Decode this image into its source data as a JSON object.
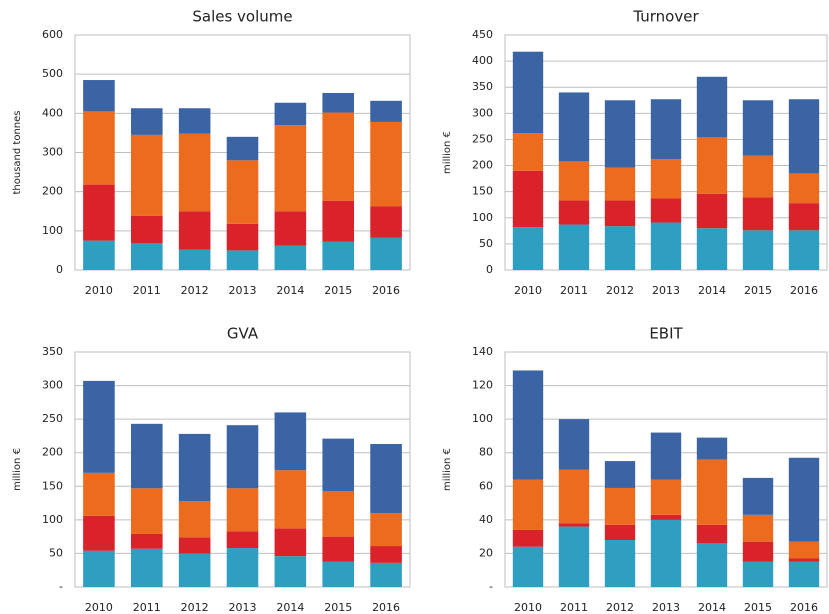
{
  "chart_data": [
    {
      "type": "bar",
      "stacked": true,
      "title": "Sales volume",
      "y_label": "thousand tonnes",
      "categories": [
        "2010",
        "2011",
        "2012",
        "2013",
        "2014",
        "2015",
        "2016"
      ],
      "series": [
        {
          "color": "#2e9fc0",
          "values": [
            75,
            68,
            52,
            50,
            62,
            72,
            83
          ]
        },
        {
          "color": "#d9222a",
          "values": [
            143,
            70,
            98,
            68,
            88,
            105,
            80
          ]
        },
        {
          "color": "#ec6b1e",
          "values": [
            187,
            207,
            198,
            162,
            220,
            225,
            215
          ]
        },
        {
          "color": "#3a64a3",
          "values": [
            80,
            68,
            65,
            60,
            57,
            50,
            54
          ]
        }
      ],
      "ylim": [
        0,
        600
      ],
      "yticks": [
        0,
        100,
        200,
        300,
        400,
        500,
        600
      ],
      "grid": true
    },
    {
      "type": "bar",
      "stacked": true,
      "title": "Turnover",
      "y_label": "million €",
      "categories": [
        "2010",
        "2011",
        "2012",
        "2013",
        "2014",
        "2015",
        "2016"
      ],
      "series": [
        {
          "color": "#2e9fc0",
          "values": [
            82,
            87,
            84,
            91,
            80,
            76,
            76
          ]
        },
        {
          "color": "#d9222a",
          "values": [
            108,
            46,
            49,
            46,
            66,
            63,
            52
          ]
        },
        {
          "color": "#ec6b1e",
          "values": [
            72,
            75,
            63,
            75,
            108,
            80,
            57
          ]
        },
        {
          "color": "#3a64a3",
          "values": [
            156,
            132,
            129,
            115,
            116,
            106,
            142
          ]
        }
      ],
      "ylim": [
        0,
        450
      ],
      "yticks": [
        0,
        50,
        100,
        150,
        200,
        250,
        300,
        350,
        400,
        450
      ],
      "grid": true
    },
    {
      "type": "bar",
      "stacked": true,
      "title": "GVA",
      "y_label": "million €",
      "categories": [
        "2010",
        "2011",
        "2012",
        "2013",
        "2014",
        "2015",
        "2016"
      ],
      "series": [
        {
          "color": "#2e9fc0",
          "values": [
            54,
            57,
            50,
            58,
            46,
            38,
            36
          ]
        },
        {
          "color": "#d9222a",
          "values": [
            52,
            22,
            24,
            25,
            41,
            37,
            25
          ]
        },
        {
          "color": "#ec6b1e",
          "values": [
            64,
            68,
            54,
            64,
            87,
            68,
            49
          ]
        },
        {
          "color": "#3a64a3",
          "values": [
            137,
            96,
            100,
            94,
            86,
            78,
            103
          ]
        }
      ],
      "ylim": [
        0,
        350
      ],
      "yticks": [
        {
          "value": 0,
          "label": "-"
        },
        50,
        100,
        150,
        200,
        250,
        300,
        350
      ],
      "grid": true
    },
    {
      "type": "bar",
      "stacked": true,
      "title": "EBIT",
      "y_label": "million €",
      "categories": [
        "2010",
        "2011",
        "2012",
        "2013",
        "2014",
        "2015",
        "2016"
      ],
      "series": [
        {
          "color": "#2e9fc0",
          "values": [
            24,
            36,
            28,
            40,
            26,
            15,
            15
          ]
        },
        {
          "color": "#d9222a",
          "values": [
            10,
            2,
            9,
            3,
            11,
            12,
            2
          ]
        },
        {
          "color": "#ec6b1e",
          "values": [
            30,
            32,
            22,
            21,
            39,
            16,
            10
          ]
        },
        {
          "color": "#3a64a3",
          "values": [
            65,
            30,
            16,
            28,
            13,
            22,
            50
          ]
        }
      ],
      "ylim": [
        0,
        140
      ],
      "yticks": [
        {
          "value": 0,
          "label": "-"
        },
        20,
        40,
        60,
        80,
        100,
        120,
        140
      ],
      "grid": true
    }
  ]
}
